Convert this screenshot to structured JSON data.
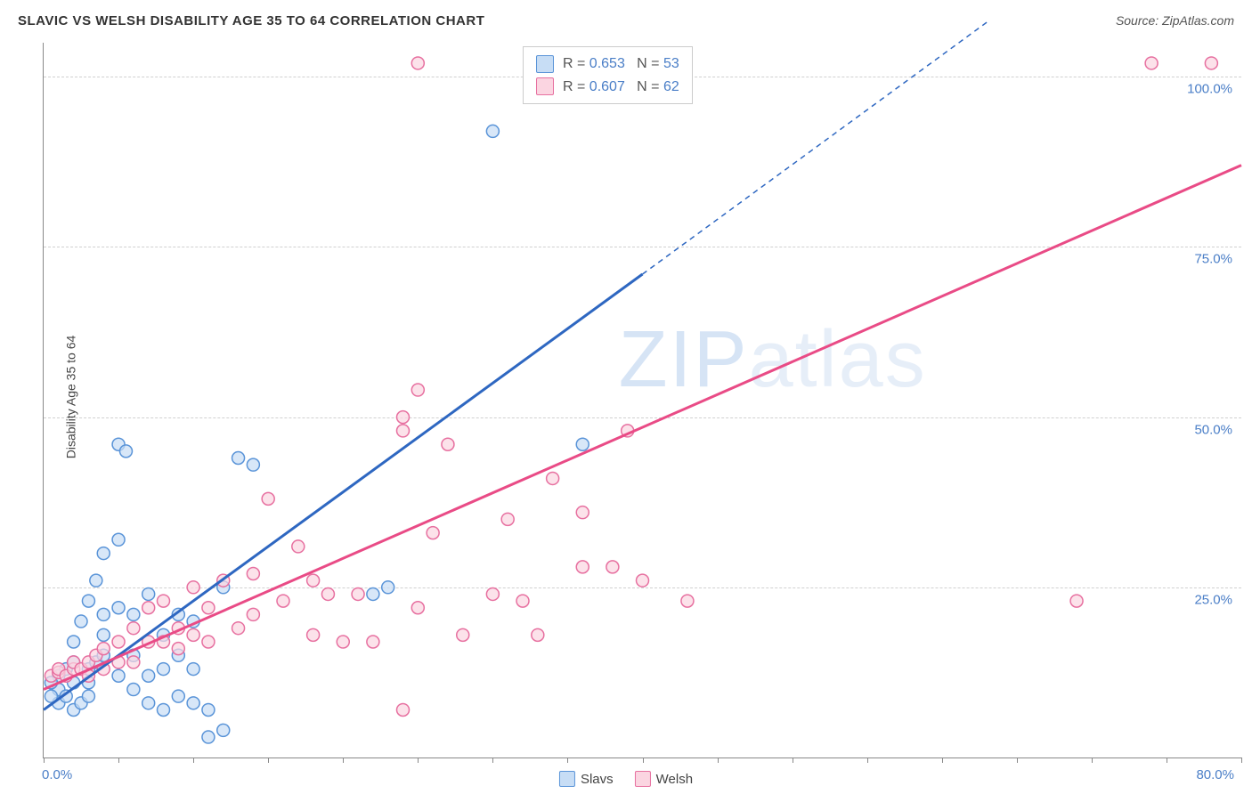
{
  "title": "SLAVIC VS WELSH DISABILITY AGE 35 TO 64 CORRELATION CHART",
  "source_label": "Source: ZipAtlas.com",
  "ylabel": "Disability Age 35 to 64",
  "chart": {
    "type": "scatter",
    "xlim": [
      0,
      80
    ],
    "ylim": [
      0,
      105
    ],
    "xtick_positions": [
      0,
      5,
      10,
      15,
      20,
      25,
      30,
      35,
      40,
      45,
      50,
      55,
      60,
      65,
      70,
      75,
      80
    ],
    "xtick_labels_shown": {
      "0": "0.0%",
      "80": "80.0%"
    },
    "ytick_positions": [
      25,
      50,
      75,
      100
    ],
    "ytick_labels": [
      "25.0%",
      "50.0%",
      "75.0%",
      "100.0%"
    ],
    "grid_color": "#d0d0d0",
    "background_color": "#ffffff",
    "axis_color": "#888888",
    "tick_label_color": "#4a7ec7",
    "marker_radius": 7,
    "marker_stroke_width": 1.5,
    "trend_line_width": 3,
    "series": [
      {
        "name": "Slavs",
        "color_fill": "#c7ddf5",
        "color_stroke": "#5a94d8",
        "trend_color": "#2e67c1",
        "trend_dash_after_x": 40,
        "trend_start": [
          0,
          7
        ],
        "trend_solid_end": [
          40,
          71
        ],
        "trend_dash_end": [
          63,
          108
        ],
        "R": "0.653",
        "N": "53",
        "points": [
          [
            1,
            12
          ],
          [
            1,
            10
          ],
          [
            1.5,
            13
          ],
          [
            2,
            14
          ],
          [
            2,
            11
          ],
          [
            1,
            8
          ],
          [
            0.5,
            9
          ],
          [
            0.5,
            11
          ],
          [
            1.5,
            9
          ],
          [
            2,
            7
          ],
          [
            2.5,
            8
          ],
          [
            3,
            9
          ],
          [
            3,
            11
          ],
          [
            3,
            13
          ],
          [
            3.5,
            14
          ],
          [
            4,
            15
          ],
          [
            4,
            18
          ],
          [
            4,
            21
          ],
          [
            2,
            17
          ],
          [
            2.5,
            20
          ],
          [
            3,
            23
          ],
          [
            3.5,
            26
          ],
          [
            4,
            30
          ],
          [
            5,
            32
          ],
          [
            5,
            22
          ],
          [
            5,
            12
          ],
          [
            6,
            10
          ],
          [
            6,
            15
          ],
          [
            6,
            21
          ],
          [
            7,
            8
          ],
          [
            7,
            12
          ],
          [
            7,
            24
          ],
          [
            8,
            13
          ],
          [
            8,
            18
          ],
          [
            8,
            7
          ],
          [
            9,
            9
          ],
          [
            9,
            15
          ],
          [
            9,
            21
          ],
          [
            10,
            8
          ],
          [
            10,
            13
          ],
          [
            10,
            20
          ],
          [
            11,
            3
          ],
          [
            11,
            7
          ],
          [
            12,
            4
          ],
          [
            12,
            25
          ],
          [
            13,
            44
          ],
          [
            5,
            46
          ],
          [
            5.5,
            45
          ],
          [
            14,
            43
          ],
          [
            22,
            24
          ],
          [
            23,
            25
          ],
          [
            30,
            92
          ],
          [
            36,
            46
          ]
        ]
      },
      {
        "name": "Welsh",
        "color_fill": "#fbd5e1",
        "color_stroke": "#e770a0",
        "trend_color": "#e94b86",
        "trend_dash_after_x": 100,
        "trend_start": [
          0,
          10
        ],
        "trend_solid_end": [
          80,
          87
        ],
        "trend_dash_end": [
          80,
          87
        ],
        "R": "0.607",
        "N": "62",
        "points": [
          [
            0.5,
            12
          ],
          [
            1,
            12.5
          ],
          [
            1,
            13
          ],
          [
            1.5,
            12
          ],
          [
            2,
            13
          ],
          [
            2,
            14
          ],
          [
            2.5,
            13
          ],
          [
            3,
            14
          ],
          [
            3,
            12
          ],
          [
            3.5,
            15
          ],
          [
            4,
            13
          ],
          [
            4,
            16
          ],
          [
            5,
            17
          ],
          [
            5,
            14
          ],
          [
            6,
            14
          ],
          [
            6,
            19
          ],
          [
            7,
            17
          ],
          [
            7,
            22
          ],
          [
            8,
            17
          ],
          [
            8,
            23
          ],
          [
            9,
            16
          ],
          [
            9,
            19
          ],
          [
            10,
            18
          ],
          [
            10,
            25
          ],
          [
            11,
            17
          ],
          [
            11,
            22
          ],
          [
            12,
            26
          ],
          [
            13,
            19
          ],
          [
            14,
            21
          ],
          [
            14,
            27
          ],
          [
            15,
            38
          ],
          [
            16,
            23
          ],
          [
            17,
            31
          ],
          [
            18,
            26
          ],
          [
            18,
            18
          ],
          [
            19,
            24
          ],
          [
            20,
            17
          ],
          [
            21,
            24
          ],
          [
            22,
            17
          ],
          [
            24,
            50
          ],
          [
            24,
            48
          ],
          [
            24,
            7
          ],
          [
            25,
            22
          ],
          [
            25,
            54
          ],
          [
            25,
            102
          ],
          [
            26,
            33
          ],
          [
            27,
            46
          ],
          [
            28,
            18
          ],
          [
            30,
            24
          ],
          [
            31,
            35
          ],
          [
            32,
            23
          ],
          [
            33,
            18
          ],
          [
            34,
            41
          ],
          [
            36,
            36
          ],
          [
            36,
            28
          ],
          [
            38,
            28
          ],
          [
            39,
            48
          ],
          [
            40,
            26
          ],
          [
            43,
            23
          ],
          [
            69,
            23
          ],
          [
            74,
            102
          ],
          [
            78,
            102
          ]
        ]
      }
    ]
  },
  "legend_bottom": [
    {
      "label": "Slavs",
      "fill": "#c7ddf5",
      "stroke": "#5a94d8"
    },
    {
      "label": "Welsh",
      "fill": "#fbd5e1",
      "stroke": "#e770a0"
    }
  ],
  "watermark": {
    "line1": "ZIP",
    "line2": "atlas"
  }
}
